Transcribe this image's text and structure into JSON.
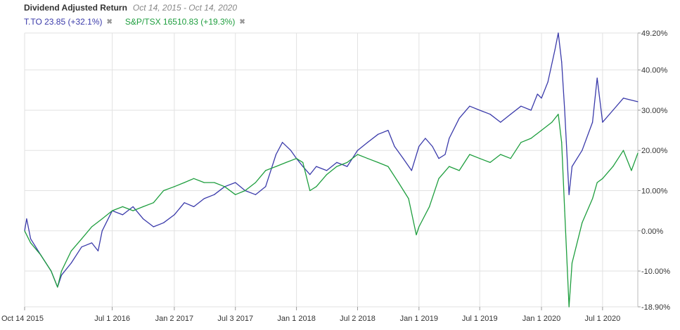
{
  "header": {
    "title": "Dividend Adjusted Return",
    "date_range": "Oct 14, 2015 - Oct 14, 2020"
  },
  "legend": [
    {
      "label": "T.TO 23.85 (+32.1%)",
      "color": "#3a3aaa",
      "close_icon": "close-icon"
    },
    {
      "label": "S&P/TSX 16510.83 (+19.3%)",
      "color": "#1e9e3e",
      "close_icon": "close-icon"
    }
  ],
  "chart_data": {
    "type": "line",
    "title": "Dividend Adjusted Return",
    "xlabel": "",
    "ylabel": "",
    "ylim": [
      -18.9,
      49.2
    ],
    "grid": true,
    "legend_position": "top-left",
    "y_ticks": [
      "49.20%",
      "40.00%",
      "30.00%",
      "20.00%",
      "10.00%",
      "0.00%",
      "-10.00%",
      "-18.90%"
    ],
    "y_tick_values": [
      49.2,
      40,
      30,
      20,
      10,
      0,
      -10,
      -18.9
    ],
    "x_ticks": [
      "Oct 14 2015",
      "Jul 1 2016",
      "Jan 2 2017",
      "Jul 3 2017",
      "Jan 1 2018",
      "Jul 2 2018",
      "Jan 1 2019",
      "Jul 1 2019",
      "Jan 1 2020",
      "Jul 1 2020"
    ],
    "x_tick_dates": [
      "2015-10-14",
      "2016-07-01",
      "2017-01-02",
      "2017-07-03",
      "2018-01-01",
      "2018-07-02",
      "2019-01-01",
      "2019-07-01",
      "2020-01-01",
      "2020-07-01"
    ],
    "x_range": [
      "2015-10-14",
      "2020-10-14"
    ],
    "series": [
      {
        "name": "T.TO 23.85 (+32.1%)",
        "color": "#3a3aaa",
        "points": [
          [
            "2015-10-14",
            0
          ],
          [
            "2015-10-20",
            3
          ],
          [
            "2015-11-01",
            -2
          ],
          [
            "2015-12-01",
            -6
          ],
          [
            "2016-01-01",
            -10
          ],
          [
            "2016-01-20",
            -14
          ],
          [
            "2016-02-01",
            -11
          ],
          [
            "2016-03-01",
            -8
          ],
          [
            "2016-04-01",
            -4
          ],
          [
            "2016-05-01",
            -3
          ],
          [
            "2016-05-20",
            -5
          ],
          [
            "2016-06-01",
            0
          ],
          [
            "2016-07-01",
            5
          ],
          [
            "2016-08-01",
            4
          ],
          [
            "2016-09-01",
            6
          ],
          [
            "2016-10-01",
            3
          ],
          [
            "2016-11-01",
            1
          ],
          [
            "2016-12-01",
            2
          ],
          [
            "2017-01-02",
            4
          ],
          [
            "2017-02-01",
            7
          ],
          [
            "2017-03-01",
            6
          ],
          [
            "2017-04-01",
            8
          ],
          [
            "2017-05-01",
            9
          ],
          [
            "2017-06-01",
            11
          ],
          [
            "2017-07-03",
            12
          ],
          [
            "2017-08-01",
            10
          ],
          [
            "2017-09-01",
            9
          ],
          [
            "2017-10-01",
            11
          ],
          [
            "2017-11-01",
            19
          ],
          [
            "2017-11-20",
            22
          ],
          [
            "2017-12-15",
            20
          ],
          [
            "2018-01-01",
            18
          ],
          [
            "2018-01-20",
            16
          ],
          [
            "2018-02-10",
            14
          ],
          [
            "2018-03-01",
            16
          ],
          [
            "2018-04-01",
            15
          ],
          [
            "2018-05-01",
            17
          ],
          [
            "2018-06-01",
            16
          ],
          [
            "2018-07-02",
            20
          ],
          [
            "2018-08-01",
            22
          ],
          [
            "2018-09-01",
            24
          ],
          [
            "2018-10-01",
            25
          ],
          [
            "2018-10-20",
            21
          ],
          [
            "2018-11-15",
            18
          ],
          [
            "2018-12-10",
            15
          ],
          [
            "2019-01-01",
            21
          ],
          [
            "2019-01-20",
            23
          ],
          [
            "2019-02-10",
            21
          ],
          [
            "2019-03-01",
            18
          ],
          [
            "2019-03-20",
            19
          ],
          [
            "2019-04-01",
            23
          ],
          [
            "2019-05-01",
            28
          ],
          [
            "2019-06-01",
            31
          ],
          [
            "2019-07-01",
            30
          ],
          [
            "2019-08-01",
            29
          ],
          [
            "2019-09-01",
            27
          ],
          [
            "2019-10-01",
            29
          ],
          [
            "2019-11-01",
            31
          ],
          [
            "2019-12-01",
            30
          ],
          [
            "2019-12-20",
            34
          ],
          [
            "2020-01-01",
            33
          ],
          [
            "2020-01-20",
            37
          ],
          [
            "2020-02-10",
            45
          ],
          [
            "2020-02-20",
            49.2
          ],
          [
            "2020-03-01",
            42
          ],
          [
            "2020-03-10",
            30
          ],
          [
            "2020-03-23",
            9
          ],
          [
            "2020-04-01",
            16
          ],
          [
            "2020-05-01",
            20
          ],
          [
            "2020-06-01",
            27
          ],
          [
            "2020-06-15",
            38
          ],
          [
            "2020-07-01",
            27
          ],
          [
            "2020-08-01",
            30
          ],
          [
            "2020-09-01",
            33
          ],
          [
            "2020-10-14",
            32.1
          ]
        ]
      },
      {
        "name": "S&P/TSX 16510.83 (+19.3%)",
        "color": "#1e9e3e",
        "points": [
          [
            "2015-10-14",
            0
          ],
          [
            "2015-11-01",
            -3
          ],
          [
            "2015-12-01",
            -6
          ],
          [
            "2016-01-01",
            -10
          ],
          [
            "2016-01-20",
            -14
          ],
          [
            "2016-02-01",
            -10
          ],
          [
            "2016-03-01",
            -5
          ],
          [
            "2016-04-01",
            -2
          ],
          [
            "2016-05-01",
            1
          ],
          [
            "2016-06-01",
            3
          ],
          [
            "2016-07-01",
            5
          ],
          [
            "2016-08-01",
            6
          ],
          [
            "2016-09-01",
            5
          ],
          [
            "2016-10-01",
            6
          ],
          [
            "2016-11-01",
            7
          ],
          [
            "2016-12-01",
            10
          ],
          [
            "2017-01-02",
            11
          ],
          [
            "2017-02-01",
            12
          ],
          [
            "2017-03-01",
            13
          ],
          [
            "2017-04-01",
            12
          ],
          [
            "2017-05-01",
            12
          ],
          [
            "2017-06-01",
            11
          ],
          [
            "2017-07-03",
            9
          ],
          [
            "2017-08-01",
            10
          ],
          [
            "2017-09-01",
            12
          ],
          [
            "2017-10-01",
            15
          ],
          [
            "2017-11-01",
            16
          ],
          [
            "2017-12-01",
            17
          ],
          [
            "2018-01-01",
            18
          ],
          [
            "2018-01-20",
            17
          ],
          [
            "2018-02-10",
            10
          ],
          [
            "2018-03-01",
            11
          ],
          [
            "2018-04-01",
            14
          ],
          [
            "2018-05-01",
            16
          ],
          [
            "2018-06-01",
            17
          ],
          [
            "2018-07-02",
            19
          ],
          [
            "2018-08-01",
            18
          ],
          [
            "2018-09-01",
            17
          ],
          [
            "2018-10-01",
            16
          ],
          [
            "2018-11-01",
            12
          ],
          [
            "2018-12-01",
            8
          ],
          [
            "2018-12-24",
            -1
          ],
          [
            "2019-01-01",
            1
          ],
          [
            "2019-02-01",
            6
          ],
          [
            "2019-03-01",
            13
          ],
          [
            "2019-04-01",
            16
          ],
          [
            "2019-05-01",
            15
          ],
          [
            "2019-06-01",
            19
          ],
          [
            "2019-07-01",
            18
          ],
          [
            "2019-08-01",
            17
          ],
          [
            "2019-09-01",
            19
          ],
          [
            "2019-10-01",
            18
          ],
          [
            "2019-11-01",
            22
          ],
          [
            "2019-12-01",
            23
          ],
          [
            "2020-01-01",
            25
          ],
          [
            "2020-02-01",
            27
          ],
          [
            "2020-02-20",
            29
          ],
          [
            "2020-03-01",
            22
          ],
          [
            "2020-03-10",
            5
          ],
          [
            "2020-03-23",
            -18.9
          ],
          [
            "2020-04-01",
            -8
          ],
          [
            "2020-05-01",
            2
          ],
          [
            "2020-06-01",
            8
          ],
          [
            "2020-06-15",
            12
          ],
          [
            "2020-07-01",
            13
          ],
          [
            "2020-08-01",
            16
          ],
          [
            "2020-09-01",
            20
          ],
          [
            "2020-09-25",
            15
          ],
          [
            "2020-10-14",
            19.3
          ]
        ]
      }
    ]
  }
}
